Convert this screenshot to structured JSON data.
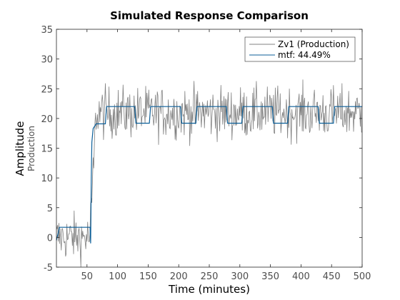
{
  "chart_data": {
    "type": "line",
    "title": "Simulated Response Comparison",
    "xlabel": "Time (minutes)",
    "ylabel": "Amplitude",
    "ylabel_sub": "Production",
    "xlim": [
      0,
      500
    ],
    "ylim": [
      -5,
      35
    ],
    "xticks": [
      50,
      100,
      150,
      200,
      250,
      300,
      350,
      400,
      450,
      500
    ],
    "yticks": [
      -5,
      0,
      5,
      10,
      15,
      20,
      25,
      30,
      35
    ],
    "grid": false,
    "legend_position": "top-right",
    "series": [
      {
        "name": "Zv1 (Production)",
        "color": "#808080",
        "style": "noisy measured",
        "segments": [
          {
            "x_from": 0,
            "x_to": 55,
            "mean": 0
          },
          {
            "x_from": 55,
            "x_to": 65,
            "mean": 12
          },
          {
            "x_from": 65,
            "x_to": 500,
            "mean": 21
          }
        ],
        "range_min": -5,
        "range_max": 30
      },
      {
        "name": "mtf: 44.49%",
        "color": "#0c5f99",
        "style": "simulated step",
        "breakpoints": [
          {
            "x": 0,
            "y": -0.5
          },
          {
            "x": 5,
            "y": 1.7
          },
          {
            "x": 55,
            "y": 1.7
          },
          {
            "x": 56,
            "y": -1
          },
          {
            "x": 57,
            "y": 10
          },
          {
            "x": 58,
            "y": 16
          },
          {
            "x": 60,
            "y": 18.3
          },
          {
            "x": 65,
            "y": 19.1
          },
          {
            "x": 80,
            "y": 19.1
          },
          {
            "x": 82,
            "y": 22
          },
          {
            "x": 128,
            "y": 22
          },
          {
            "x": 130,
            "y": 19.2
          },
          {
            "x": 152,
            "y": 19.2
          },
          {
            "x": 154,
            "y": 22
          },
          {
            "x": 203,
            "y": 22
          },
          {
            "x": 205,
            "y": 19.2
          },
          {
            "x": 228,
            "y": 19.2
          },
          {
            "x": 230,
            "y": 22
          },
          {
            "x": 278,
            "y": 22
          },
          {
            "x": 280,
            "y": 19.2
          },
          {
            "x": 303,
            "y": 19.2
          },
          {
            "x": 305,
            "y": 22
          },
          {
            "x": 353,
            "y": 22
          },
          {
            "x": 355,
            "y": 19.2
          },
          {
            "x": 378,
            "y": 19.2
          },
          {
            "x": 380,
            "y": 22
          },
          {
            "x": 428,
            "y": 22
          },
          {
            "x": 430,
            "y": 19.2
          },
          {
            "x": 453,
            "y": 19.2
          },
          {
            "x": 455,
            "y": 22
          },
          {
            "x": 500,
            "y": 22
          }
        ]
      }
    ]
  }
}
